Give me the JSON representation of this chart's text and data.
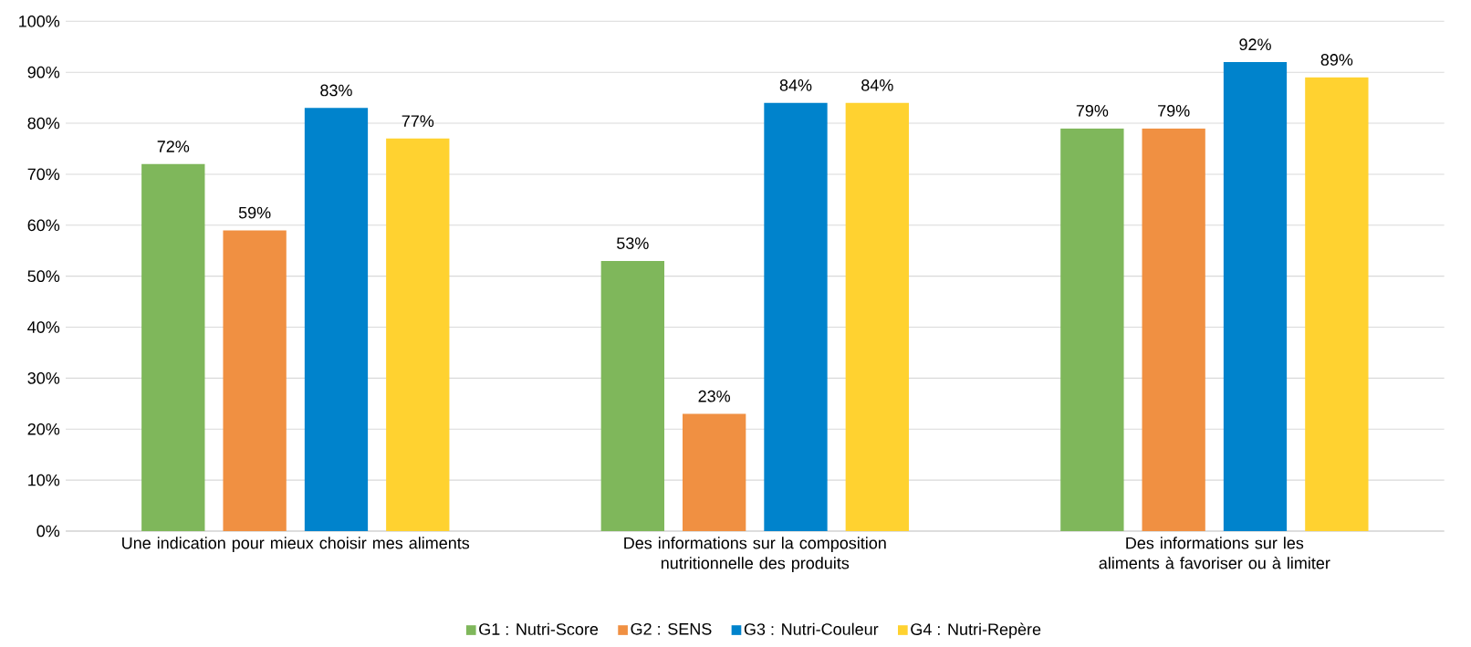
{
  "chart_data": {
    "type": "bar",
    "categories": [
      "Une indication pour mieux choisir mes aliments",
      "Des informations sur la composition nutritionnelle des produits",
      "Des informations sur les aliments à favoriser ou à limiter"
    ],
    "series": [
      {
        "name": "G1 : Nutri-Score",
        "color": "#7fb75b",
        "values": [
          72,
          53,
          79
        ],
        "value_labels": [
          "72%",
          "53%",
          "79%"
        ]
      },
      {
        "name": "G2 : SENS",
        "color": "#f09042",
        "values": [
          59,
          23,
          79
        ],
        "value_labels": [
          "59%",
          "23%",
          "79%"
        ]
      },
      {
        "name": "G3 : Nutri-Couleur",
        "color": "#0083cc",
        "values": [
          83,
          84,
          92
        ],
        "value_labels": [
          "83%",
          "84%",
          "92%"
        ]
      },
      {
        "name": "G4 : Nutri-Repère",
        "color": "#ffd230",
        "values": [
          77,
          84,
          89
        ],
        "value_labels": [
          "77%",
          "84%",
          "89%"
        ]
      }
    ],
    "ylim": [
      0,
      100
    ],
    "yticks": [
      {
        "value": 0,
        "label": "0%"
      },
      {
        "value": 10,
        "label": "10%"
      },
      {
        "value": 20,
        "label": "20%"
      },
      {
        "value": 30,
        "label": "30%"
      },
      {
        "value": 40,
        "label": "40%"
      },
      {
        "value": 50,
        "label": "50%"
      },
      {
        "value": 60,
        "label": "60%"
      },
      {
        "value": 70,
        "label": "70%"
      },
      {
        "value": 80,
        "label": "80%"
      },
      {
        "value": 90,
        "label": "90%"
      },
      {
        "value": 100,
        "label": "100%"
      }
    ],
    "grid": "y",
    "legend": "bottom"
  }
}
